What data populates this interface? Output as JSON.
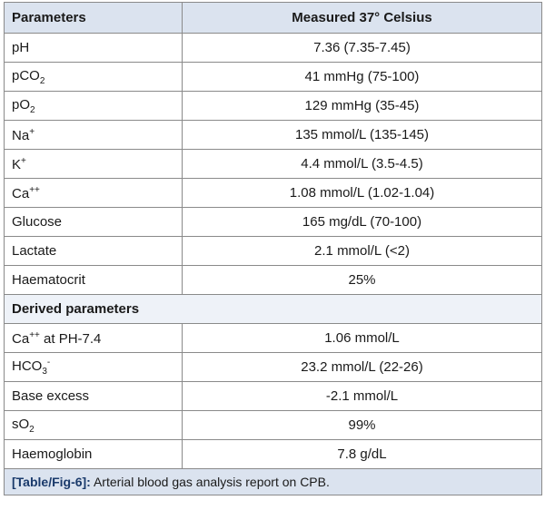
{
  "header": {
    "col1": "Parameters",
    "col2": "Measured 37° Celsius"
  },
  "rows": [
    {
      "name": "pH",
      "value": "7.36 (7.35-7.45)"
    },
    {
      "name_main": "pCO",
      "name_sub": "2",
      "value": "41 mmHg (75-100)"
    },
    {
      "name_main": "pO",
      "name_sub": "2",
      "value": "129 mmHg (35-45)"
    },
    {
      "name_main": "Na",
      "name_sup": "+",
      "value": "135 mmol/L (135-145)"
    },
    {
      "name_main": "K",
      "name_sup": "+",
      "value": "4.4 mmol/L (3.5-4.5)"
    },
    {
      "name_main": "Ca",
      "name_sup": "++",
      "value": "1.08 mmol/L (1.02-1.04)"
    },
    {
      "name": "Glucose",
      "value": "165 mg/dL (70-100)"
    },
    {
      "name": "Lactate",
      "value": "2.1 mmol/L (<2)"
    },
    {
      "name": "Haematocrit",
      "value": "25%"
    }
  ],
  "derived_title": "Derived parameters",
  "derived": [
    {
      "name_main": "Ca",
      "name_sup": "++",
      "name_tail": " at PH-7.4",
      "value": "1.06 mmol/L"
    },
    {
      "name_main": "HCO",
      "name_sub": "3",
      "name_sup": "-",
      "value": "23.2 mmol/L (22-26)"
    },
    {
      "name": "Base excess",
      "value": "-2.1 mmol/L"
    },
    {
      "name_main": "sO",
      "name_sub": "2",
      "value": "99%"
    },
    {
      "name": "Haemoglobin",
      "value": "7.8 g/dL"
    }
  ],
  "caption": {
    "tag": "[Table/Fig-6]:",
    "text": " Arterial blood gas analysis report on CPB."
  }
}
